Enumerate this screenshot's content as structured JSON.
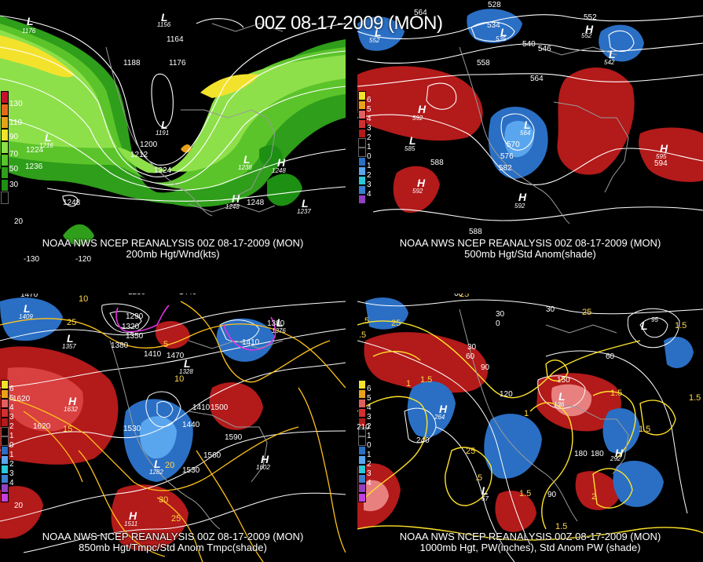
{
  "title": "00Z 08-17-2009 (MON)",
  "panel1": {
    "caption1": "NOAA NWS NCEP REANALYSIS 00Z 08-17-2009 (MON)",
    "caption2": "200mb Hgt/Wnd(kts)",
    "legend": [
      "130",
      "110",
      "90",
      "70",
      "50",
      "30"
    ],
    "contours": [
      "1176",
      "1164",
      "1188",
      "1176",
      "1200",
      "1212",
      "1224",
      "1236",
      "1224",
      "1248",
      "1248",
      "1248",
      "1236"
    ],
    "lon": [
      "-130",
      "-120"
    ],
    "lat": [
      "20"
    ],
    "centers": [
      {
        "t": "L",
        "v": "1176"
      },
      {
        "t": "L",
        "v": "1156"
      },
      {
        "t": "L",
        "v": "1216"
      },
      {
        "t": "L",
        "v": "1191"
      },
      {
        "t": "L",
        "v": "1238"
      },
      {
        "t": "H",
        "v": "1248"
      },
      {
        "t": "H",
        "v": "1248"
      },
      {
        "t": "L",
        "v": "1237"
      }
    ],
    "colors": {
      "green_light": "#7cd63a",
      "green_mid": "#3fb81f",
      "green_dark": "#1d8f12",
      "yellow": "#f3e22c",
      "orange": "#e8a21a"
    }
  },
  "panel2": {
    "caption1": "NOAA NWS NCEP REANALYSIS 00Z 08-17-2009 (MON)",
    "caption2": "500mb Hgt/Std Anom(shade)",
    "legend": [
      "6",
      "5",
      "4",
      "3",
      "2",
      "1",
      "0",
      "1",
      "2",
      "3",
      "4",
      "5"
    ],
    "contours": [
      "564",
      "528",
      "534",
      "540",
      "546",
      "552",
      "558",
      "564",
      "552",
      "546",
      "588",
      "570",
      "576",
      "582",
      "588",
      "594",
      "552"
    ],
    "centers": [
      {
        "t": "L",
        "v": "552"
      },
      {
        "t": "L",
        "v": "535"
      },
      {
        "t": "H",
        "v": "552"
      },
      {
        "t": "L",
        "v": "542"
      },
      {
        "t": "H",
        "v": "592"
      },
      {
        "t": "L",
        "v": "585"
      },
      {
        "t": "L",
        "v": "564"
      },
      {
        "t": "H",
        "v": "592"
      },
      {
        "t": "H",
        "v": "592"
      },
      {
        "t": "H",
        "v": "595"
      }
    ]
  },
  "panel3": {
    "caption1": "NOAA NWS NCEP REANALYSIS 00Z 08-17-2009 (MON)",
    "caption2": "850mb Hgt/Tmpc/Std Anom Tmpc(shade)",
    "legend": [
      "6",
      "5",
      "4",
      "3",
      "2",
      "1",
      "0",
      "1",
      "2",
      "3",
      "4",
      "5",
      "6"
    ],
    "contours": [
      "1470",
      "1230",
      "1290",
      "1320",
      "1350",
      "1380",
      "1410",
      "1470",
      "1440",
      "1410",
      "1380",
      "1500",
      "1410",
      "1530",
      "1440",
      "1560",
      "1590",
      "1620",
      "1620",
      "1530",
      "1440"
    ],
    "temps": [
      "10",
      "-5",
      "5",
      "10",
      "15",
      "20",
      "25",
      "30",
      "25",
      "20"
    ],
    "centers": [
      {
        "t": "L",
        "v": "1409"
      },
      {
        "t": "L",
        "v": "1357"
      },
      {
        "t": "H",
        "v": "1632"
      },
      {
        "t": "L",
        "v": "1328"
      },
      {
        "t": "L",
        "v": "1376"
      },
      {
        "t": "L",
        "v": "1282"
      },
      {
        "t": "H",
        "v": "1602"
      },
      {
        "t": "H",
        "v": "1511"
      }
    ]
  },
  "panel4": {
    "caption1": "NOAA NWS NCEP REANALYSIS 00Z 08-17-2009 (MON)",
    "caption2": "1000mb Hgt, PW(inches), Std Anom PW (shade)",
    "legend": [
      "6",
      "5",
      "4",
      "3",
      "2",
      "1",
      "0",
      "1",
      "2",
      "3",
      "4",
      "5",
      "6"
    ],
    "contours": [
      "60",
      "30",
      "0",
      "30",
      "60",
      "90",
      "120",
      "240",
      "210",
      "150",
      "180",
      "180",
      "90",
      "60",
      "30"
    ],
    "pw": [
      "25",
      "25",
      ".5",
      "25",
      ".5",
      "1",
      "1.5",
      "1.5",
      "1",
      "1.5",
      "25",
      "1.5",
      "2",
      "1.5",
      "1.5",
      ".5",
      "1",
      "1.5",
      "1",
      "2"
    ],
    "centers": [
      {
        "t": "L",
        "v": "67"
      },
      {
        "t": "H",
        "v": "264"
      },
      {
        "t": "H",
        "v": "292"
      },
      {
        "t": "L",
        "v": "95"
      },
      {
        "t": "L",
        "v": "136"
      }
    ]
  }
}
